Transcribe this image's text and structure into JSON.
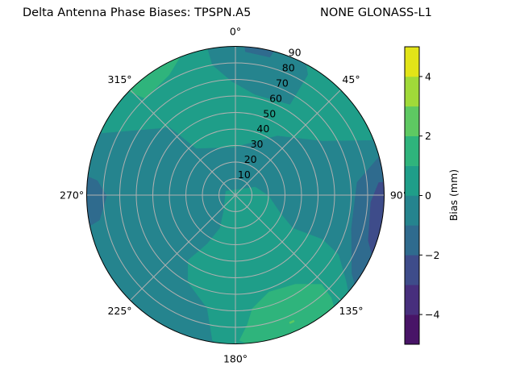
{
  "chart_data": {
    "type": "polar-contour",
    "title_left": "Delta Antenna Phase Biases: TPSPN.A5",
    "title_right": "NONE GLONASS-L1",
    "theta_direction": "clockwise",
    "theta_zero": "top",
    "theta_ticks": [
      {
        "value": 0,
        "label": "0°"
      },
      {
        "value": 45,
        "label": "45°"
      },
      {
        "value": 90,
        "label": "90°"
      },
      {
        "value": 135,
        "label": "135°"
      },
      {
        "value": 180,
        "label": "180°"
      },
      {
        "value": 225,
        "label": "225°"
      },
      {
        "value": 270,
        "label": "270°"
      },
      {
        "value": 315,
        "label": "315°"
      }
    ],
    "radial_ticks": [
      {
        "value": 10,
        "label": "10"
      },
      {
        "value": 20,
        "label": "20"
      },
      {
        "value": 30,
        "label": "30"
      },
      {
        "value": 40,
        "label": "40"
      },
      {
        "value": 50,
        "label": "50"
      },
      {
        "value": 60,
        "label": "60"
      },
      {
        "value": 70,
        "label": "70"
      },
      {
        "value": 80,
        "label": "80"
      },
      {
        "value": 90,
        "label": "90"
      }
    ],
    "radial_range": [
      0,
      90
    ],
    "grid": true,
    "colorbar": {
      "label": "Bias (mm)",
      "range": [
        -5,
        5
      ],
      "levels": [
        -5,
        -4,
        -3,
        -2,
        -1,
        0,
        1,
        2,
        3,
        4,
        5
      ],
      "colors": [
        "#481467",
        "#472f7d",
        "#3e4c8a",
        "#2f6b8e",
        "#25848e",
        "#1f9e89",
        "#2fb47c",
        "#5ec962",
        "#a0da39",
        "#e2e418"
      ],
      "ticks": [
        {
          "value": -4,
          "label": "−4"
        },
        {
          "value": -2,
          "label": "−2"
        },
        {
          "value": 0,
          "label": "0"
        },
        {
          "value": 2,
          "label": "2"
        },
        {
          "value": 4,
          "label": "4"
        }
      ]
    },
    "background_band": [
      -1,
      0
    ],
    "regions": [
      {
        "band": [
          0,
          1
        ],
        "points": [
          [
            295,
            89
          ],
          [
            316,
            57
          ],
          [
            320,
            37
          ],
          [
            358,
            29
          ],
          [
            35,
            44
          ],
          [
            58,
            62
          ],
          [
            68,
            89
          ],
          [
            60,
            95
          ],
          [
            30,
            95
          ],
          [
            0,
            95
          ],
          [
            330,
            95
          ],
          [
            300,
            95
          ]
        ]
      },
      {
        "band": [
          -1,
          0
        ],
        "points": [
          [
            349,
            95
          ],
          [
            350,
            80
          ],
          [
            358,
            69
          ],
          [
            11,
            62
          ],
          [
            31,
            64
          ],
          [
            31,
            85
          ],
          [
            26,
            95
          ],
          [
            10,
            95
          ]
        ]
      },
      {
        "band": [
          -2,
          -1
        ],
        "points": [
          [
            3,
            95
          ],
          [
            16,
            95
          ],
          [
            14,
            86
          ],
          [
            4,
            87
          ]
        ]
      },
      {
        "band": [
          1,
          2
        ],
        "points": [
          [
            313,
            95
          ],
          [
            317,
            80
          ],
          [
            331,
            83
          ],
          [
            342,
            95
          ],
          [
            330,
            95
          ]
        ]
      },
      {
        "band": [
          0,
          1
        ],
        "points": [
          [
            215,
            12.6
          ],
          [
            293,
            6.3
          ],
          [
            68,
            13
          ],
          [
            91,
            20
          ],
          [
            111,
            28.6
          ],
          [
            120,
            40
          ],
          [
            117,
            59
          ],
          [
            120,
            72
          ],
          [
            128,
            85
          ],
          [
            133,
            95
          ],
          [
            155,
            95
          ],
          [
            180,
            95
          ],
          [
            189,
            89
          ],
          [
            194,
            70.6
          ],
          [
            208.6,
            60
          ],
          [
            216,
            48.7
          ],
          [
            210,
            34
          ],
          [
            205,
            22
          ]
        ]
      },
      {
        "band": [
          1,
          2
        ],
        "points": [
          [
            171.5,
            69.4
          ],
          [
            161,
            62
          ],
          [
            146,
            65
          ],
          [
            136,
            75
          ],
          [
            137,
            85
          ],
          [
            140,
            95
          ],
          [
            155,
            95
          ],
          [
            170,
            95
          ],
          [
            178.4,
            88
          ],
          [
            174.7,
            78.6
          ]
        ]
      },
      {
        "band": [
          2,
          3
        ],
        "points": [
          [
            155,
            83.5
          ],
          [
            157,
            83.5
          ],
          [
            157,
            84.5
          ],
          [
            155,
            84.5
          ]
        ]
      },
      {
        "band": [
          -2,
          -1
        ],
        "points": [
          [
            73,
            95
          ],
          [
            84,
            74
          ],
          [
            106,
            73
          ],
          [
            124,
            85
          ],
          [
            129,
            95
          ],
          [
            110,
            95
          ],
          [
            90,
            95
          ]
        ]
      },
      {
        "band": [
          -3,
          -2
        ],
        "points": [
          [
            85,
            95
          ],
          [
            85,
            87
          ],
          [
            93,
            82
          ],
          [
            109,
            85
          ],
          [
            117,
            95
          ],
          [
            100,
            95
          ]
        ]
      },
      {
        "band": [
          -2,
          -1
        ],
        "points": [
          [
            278,
            95
          ],
          [
            276,
            84
          ],
          [
            269.6,
            78
          ],
          [
            259.6,
            83.6
          ],
          [
            257,
            95
          ],
          [
            268,
            95
          ]
        ]
      }
    ]
  }
}
